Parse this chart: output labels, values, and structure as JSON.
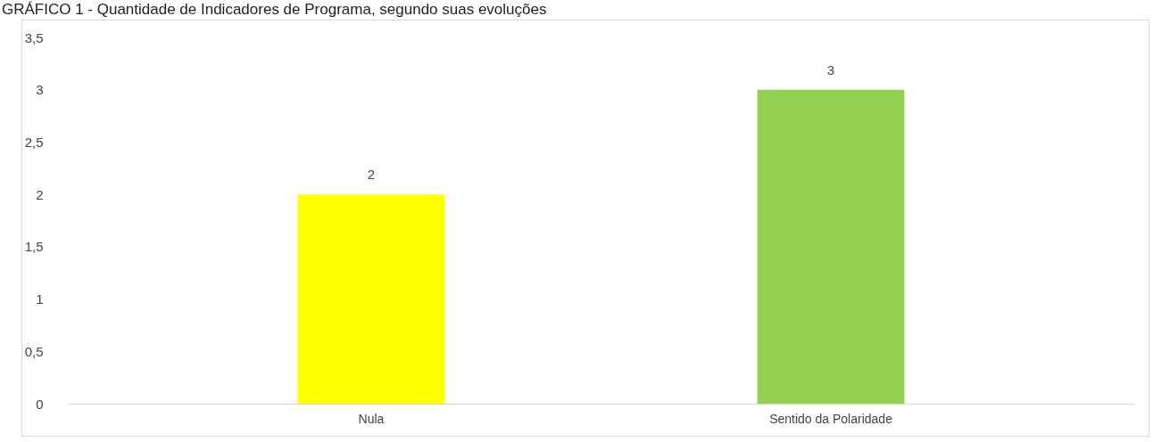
{
  "chart_data": {
    "type": "bar",
    "title": "GRÁFICO 1 - Quantidade de Indicadores de Programa, segundo suas evoluções",
    "categories": [
      "Nula",
      "Sentido da Polaridade"
    ],
    "values": [
      2,
      3
    ],
    "colors": [
      "#ffff00",
      "#92d050"
    ],
    "ylim": [
      0,
      3.5
    ],
    "yticks": [
      0,
      {
        "value": 0.5,
        "label": "0,5"
      },
      1,
      {
        "value": 1.5,
        "label": "1,5"
      },
      2,
      {
        "value": 2.5,
        "label": "2,5"
      },
      3,
      {
        "value": 3.5,
        "label": "3,5"
      }
    ],
    "grid": false,
    "data_labels": true
  }
}
